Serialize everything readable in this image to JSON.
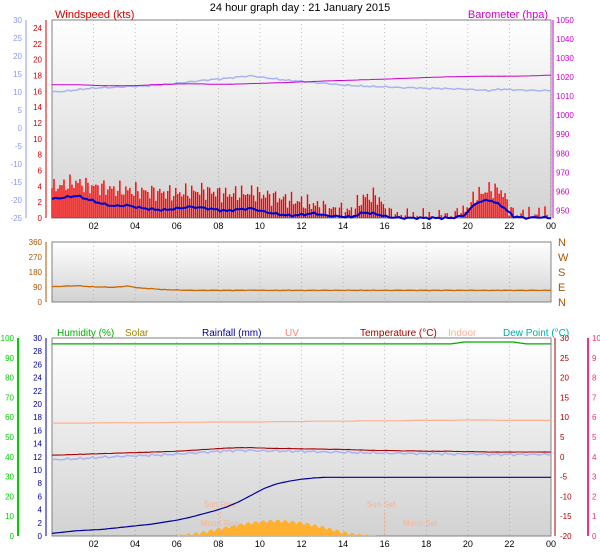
{
  "title": "24 hour graph day : 21 January 2015",
  "colors": {
    "wind": "#cc0000",
    "gust": "#ff0000",
    "windavg": "#0000cc",
    "baro": "#cc00cc",
    "dir": "#cc6600",
    "humidity": "#00aa00",
    "solar": "#ffb030",
    "solar_text": "#a08000",
    "rain": "#000099",
    "uv": "#ff8080",
    "temp": "#aa0000",
    "indoor": "#ffb090",
    "dewpoint": "#00aaaa",
    "tempscale_left": "#8899ee",
    "humscale": "#00cc00",
    "tempscale_right": "#ee3377"
  },
  "x_ticks": [
    "02",
    "04",
    "06",
    "08",
    "10",
    "12",
    "14",
    "16",
    "18",
    "20",
    "22",
    "00"
  ],
  "chart_data": [
    {
      "type": "line",
      "name": "wind-panel",
      "labels": {
        "left": "Windspeed (kts)",
        "right": "Barometer (hpa)"
      },
      "axes": {
        "outer_left": {
          "range": [
            -25,
            30
          ],
          "ticks": [
            "30",
            "25",
            "20",
            "15",
            "10",
            "5",
            "0",
            "-5",
            "-10",
            "-15",
            "-20",
            "-25"
          ]
        },
        "left": {
          "range": [
            0,
            25
          ],
          "ticks": [
            "24",
            "22",
            "20",
            "18",
            "16",
            "14",
            "12",
            "10",
            "8",
            "6",
            "4",
            "2",
            "0"
          ]
        },
        "right": {
          "range": [
            946,
            1050
          ],
          "ticks": [
            "1050",
            "1040",
            "1030",
            "1020",
            "1010",
            "1000",
            "990",
            "980",
            "970",
            "960",
            "950"
          ]
        }
      },
      "series": [
        {
          "key": "gust",
          "values": [
            3.8,
            4.2,
            4.5,
            4.0,
            3.9,
            3.6,
            3.5,
            3.4,
            3.3,
            3.2,
            3.1,
            3.3,
            3.5,
            3.3,
            3.0,
            3.1,
            3.2,
            2.9,
            2.6,
            2.3,
            2.0,
            1.7,
            1.2,
            1.0,
            0.9,
            2.6,
            2.8,
            0.6,
            0.2,
            0.1,
            0.1,
            0.1,
            0.2,
            0.8,
            2.8,
            3.6,
            3.5,
            0.4,
            0.3,
            0.5,
            0.3
          ]
        },
        {
          "key": "windavg",
          "values": [
            2.4,
            2.6,
            2.8,
            2.3,
            1.8,
            1.5,
            1.6,
            1.3,
            1.1,
            1.0,
            1.2,
            1.4,
            1.3,
            1.1,
            0.9,
            1.1,
            1.2,
            0.8,
            0.5,
            0.3,
            0.4,
            0.6,
            0.3,
            0.2,
            0.1,
            0.7,
            0.5,
            0.1,
            0.0,
            0.0,
            0.0,
            0.0,
            0.0,
            0.3,
            1.9,
            2.3,
            1.6,
            0.2,
            0.0,
            0.1,
            0.0
          ]
        },
        {
          "key": "baro",
          "values": [
            1016,
            1016,
            1016,
            1015.8,
            1015.5,
            1015.5,
            1015.5,
            1015.6,
            1016,
            1016.2,
            1016.4,
            1016.5,
            1016.4,
            1016.2,
            1016.3,
            1016.4,
            1016.6,
            1016.8,
            1017,
            1017.2,
            1017.5,
            1017.7,
            1018,
            1018.2,
            1018.4,
            1018.6,
            1018.8,
            1019,
            1019.3,
            1019.5,
            1019.8,
            1020,
            1020.2,
            1020.3,
            1020.4,
            1020.5,
            1020.5,
            1020.5,
            1020.6,
            1020.8,
            1021
          ]
        },
        {
          "key": "tempL",
          "values": [
            10.0,
            10.2,
            10.6,
            11.0,
            11.2,
            11.3,
            11.5,
            11.6,
            11.8,
            12.0,
            12.4,
            12.8,
            13.2,
            13.5,
            13.8,
            14.2,
            14.5,
            14.0,
            13.6,
            13.2,
            13.0,
            12.6,
            12.4,
            12.0,
            11.8,
            11.6,
            11.5,
            11.4,
            11.2,
            11.2,
            11.0,
            11.0,
            10.9,
            10.8,
            10.6,
            10.4,
            10.8,
            10.6,
            10.5,
            10.4,
            10.4
          ]
        }
      ]
    },
    {
      "type": "line",
      "name": "direction-panel",
      "labels": {
        "right": [
          "N",
          "W",
          "S",
          "E",
          "N"
        ]
      },
      "axes": {
        "left": {
          "range": [
            0,
            360
          ],
          "ticks": [
            "360",
            "270",
            "180",
            "90",
            "0"
          ]
        }
      },
      "series": [
        {
          "key": "dir",
          "values": [
            92,
            95,
            98,
            92,
            90,
            88,
            96,
            84,
            80,
            74,
            72,
            70,
            70,
            70,
            70,
            70,
            71,
            70,
            70,
            70,
            70,
            70,
            70,
            70,
            70,
            70,
            70,
            70,
            70,
            70,
            70,
            70,
            70,
            70,
            70,
            70,
            70,
            70,
            70,
            70,
            70
          ]
        }
      ]
    },
    {
      "type": "line",
      "name": "multi-panel",
      "labels": {
        "humidity": "Humidity (%)",
        "solar": "Solar",
        "rainfall": "Rainfall (mm)",
        "uv": "UV",
        "temperature": "Temperature (°C)",
        "indoor": "Indoor",
        "dewpoint": "Dew Point (°C)"
      },
      "axes": {
        "humidity": {
          "range": [
            0,
            100
          ],
          "ticks": [
            "100",
            "90",
            "80",
            "70",
            "60",
            "50",
            "40",
            "30",
            "20",
            "10",
            "0"
          ]
        },
        "left": {
          "range": [
            0,
            30
          ],
          "ticks": [
            "30",
            "28",
            "26",
            "24",
            "22",
            "20",
            "18",
            "16",
            "14",
            "12",
            "10",
            "8",
            "6",
            "4",
            "2",
            "0"
          ]
        },
        "right": {
          "range": [
            -20,
            30
          ],
          "ticks": [
            "30",
            "25",
            "20",
            "15",
            "10",
            "5",
            "0",
            "-5",
            "-10",
            "-15",
            "-20"
          ]
        },
        "far_right": {
          "range": [
            0,
            10
          ],
          "ticks": [
            "10",
            "9",
            "8",
            "7",
            "6",
            "5",
            "4",
            "3",
            "2",
            "1",
            "0"
          ]
        }
      },
      "series": [
        {
          "key": "humidity",
          "values": [
            97,
            97,
            97,
            97,
            97,
            97,
            97,
            97,
            97,
            97,
            97,
            97,
            97,
            97,
            97,
            97,
            97,
            97,
            97,
            97,
            97,
            97,
            97,
            97,
            97,
            97,
            97,
            97,
            97,
            97,
            97,
            97,
            97,
            98,
            98,
            98,
            98,
            98,
            97,
            97,
            97
          ]
        },
        {
          "key": "temp",
          "values": [
            0.4,
            0.5,
            0.6,
            0.7,
            0.8,
            0.9,
            1.0,
            1.1,
            1.2,
            1.3,
            1.4,
            1.6,
            1.8,
            2.0,
            2.2,
            2.3,
            2.3,
            2.2,
            2.1,
            2.1,
            2.0,
            2.0,
            1.9,
            1.9,
            1.8,
            1.7,
            1.6,
            1.6,
            1.5,
            1.5,
            1.4,
            1.4,
            1.4,
            1.3,
            1.3,
            1.2,
            1.2,
            1.2,
            1.2,
            1.2,
            1.2
          ]
        },
        {
          "key": "dewpoint",
          "values": [
            -0.8,
            -0.6,
            -0.5,
            -0.3,
            -0.1,
            0.0,
            0.2,
            0.3,
            0.4,
            0.5,
            0.7,
            0.9,
            1.1,
            1.3,
            1.5,
            1.6,
            1.6,
            1.5,
            1.5,
            1.4,
            1.4,
            1.3,
            1.2,
            1.2,
            1.1,
            1.0,
            1.0,
            0.9,
            0.9,
            0.8,
            0.8,
            0.8,
            0.7,
            0.7,
            0.7,
            0.6,
            0.6,
            0.6,
            0.6,
            0.6,
            0.6
          ]
        },
        {
          "key": "indoor",
          "values": [
            8.5,
            8.5,
            8.5,
            8.5,
            8.6,
            8.6,
            8.6,
            8.6,
            8.6,
            8.6,
            8.7,
            8.7,
            8.7,
            8.8,
            8.8,
            8.8,
            8.8,
            8.8,
            8.9,
            8.9,
            8.9,
            9.0,
            9.0,
            9.0,
            9.0,
            9.1,
            9.1,
            9.1,
            9.1,
            9.2,
            9.2,
            9.2,
            9.2,
            9.3,
            9.3,
            9.3,
            9.2,
            9.2,
            9.2,
            9.2,
            9.2
          ]
        },
        {
          "key": "rain",
          "values": [
            0.4,
            0.6,
            0.8,
            0.9,
            1.0,
            1.2,
            1.4,
            1.6,
            1.8,
            2.1,
            2.4,
            2.8,
            3.3,
            3.8,
            4.4,
            5.2,
            6.2,
            7.2,
            7.9,
            8.3,
            8.6,
            8.8,
            8.9,
            8.9,
            8.9,
            8.9,
            8.9,
            8.9,
            8.9,
            8.9,
            8.9,
            8.9,
            8.9,
            8.9,
            8.9,
            8.9,
            8.9,
            8.9,
            8.9,
            8.9,
            8.9
          ]
        },
        {
          "key": "solar",
          "values": [
            0,
            0,
            0,
            0,
            0,
            0,
            0,
            0,
            0,
            0,
            0,
            0.2,
            0.5,
            0.9,
            1.3,
            1.7,
            2.0,
            2.2,
            2.3,
            2.2,
            2.0,
            1.6,
            1.2,
            0.7,
            0.3,
            0.1,
            0,
            0,
            0,
            0,
            0,
            0,
            0,
            0,
            0,
            0,
            0,
            0,
            0,
            0,
            0
          ]
        }
      ],
      "annotations": {
        "sunrise": "Sun Rise",
        "sunset": "Sun Set",
        "moonrise": "Moon Rise",
        "moonset": "Moon Set"
      }
    }
  ]
}
